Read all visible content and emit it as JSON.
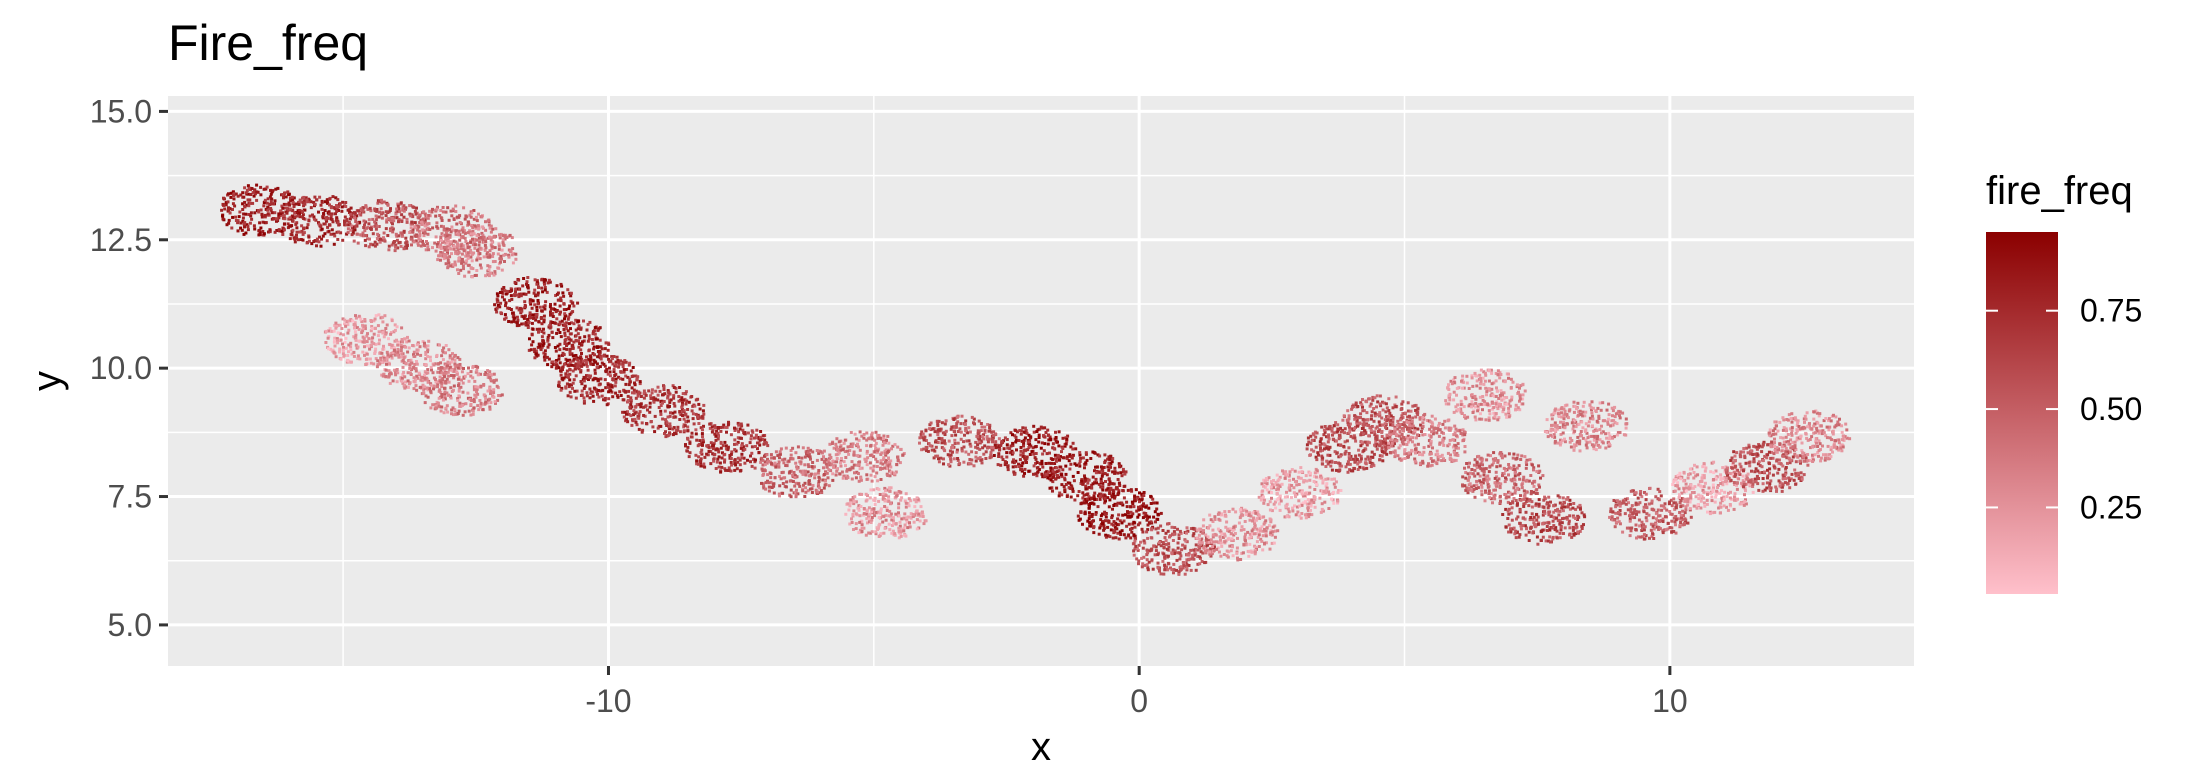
{
  "chart_data": {
    "type": "heatmap",
    "title": "Fire_freq",
    "xlabel": "x",
    "ylabel": "y",
    "xlim": [
      -18.3,
      14.6
    ],
    "ylim": [
      4.2,
      15.3
    ],
    "x_ticks": [
      -10,
      0,
      10
    ],
    "x_tick_labels": [
      "-10",
      "0",
      "10"
    ],
    "y_ticks": [
      5.0,
      7.5,
      10.0,
      12.5,
      15.0
    ],
    "y_tick_labels": [
      "5.0",
      "7.5",
      "10.0",
      "12.5",
      "15.0"
    ],
    "grid": true,
    "legend": {
      "title": "fire_freq",
      "placement": "right",
      "low_color": "#ffc0cb",
      "high_color": "#8b0000",
      "range": [
        0.03,
        0.95
      ],
      "breaks": [
        0.25,
        0.5,
        0.75
      ],
      "break_labels": [
        "0.25",
        "0.50",
        "0.75"
      ]
    },
    "colors": {
      "panel_background": "#ebebeb",
      "grid": "#ffffff"
    },
    "regions": [
      {
        "x": -16.6,
        "y": 13.1,
        "fire_freq": 0.8
      },
      {
        "x": -15.5,
        "y": 12.9,
        "fire_freq": 0.75
      },
      {
        "x": -14.2,
        "y": 12.8,
        "fire_freq": 0.55
      },
      {
        "x": -13.0,
        "y": 12.7,
        "fire_freq": 0.4
      },
      {
        "x": -12.5,
        "y": 12.3,
        "fire_freq": 0.35
      },
      {
        "x": -14.6,
        "y": 10.6,
        "fire_freq": 0.2
      },
      {
        "x": -13.6,
        "y": 10.1,
        "fire_freq": 0.3
      },
      {
        "x": -12.8,
        "y": 9.6,
        "fire_freq": 0.35
      },
      {
        "x": -11.4,
        "y": 11.3,
        "fire_freq": 0.8
      },
      {
        "x": -10.8,
        "y": 10.5,
        "fire_freq": 0.8
      },
      {
        "x": -10.2,
        "y": 9.8,
        "fire_freq": 0.75
      },
      {
        "x": -9.0,
        "y": 9.2,
        "fire_freq": 0.7
      },
      {
        "x": -7.8,
        "y": 8.5,
        "fire_freq": 0.7
      },
      {
        "x": -6.5,
        "y": 8.0,
        "fire_freq": 0.45
      },
      {
        "x": -5.2,
        "y": 8.3,
        "fire_freq": 0.35
      },
      {
        "x": -4.8,
        "y": 7.2,
        "fire_freq": 0.25
      },
      {
        "x": -3.4,
        "y": 8.6,
        "fire_freq": 0.55
      },
      {
        "x": -2.0,
        "y": 8.4,
        "fire_freq": 0.8
      },
      {
        "x": -1.0,
        "y": 7.9,
        "fire_freq": 0.8
      },
      {
        "x": -0.4,
        "y": 7.2,
        "fire_freq": 0.85
      },
      {
        "x": 0.6,
        "y": 6.5,
        "fire_freq": 0.55
      },
      {
        "x": 1.8,
        "y": 6.8,
        "fire_freq": 0.25
      },
      {
        "x": 3.0,
        "y": 7.6,
        "fire_freq": 0.2
      },
      {
        "x": 3.9,
        "y": 8.5,
        "fire_freq": 0.6
      },
      {
        "x": 4.6,
        "y": 9.0,
        "fire_freq": 0.55
      },
      {
        "x": 5.4,
        "y": 8.6,
        "fire_freq": 0.35
      },
      {
        "x": 6.5,
        "y": 9.5,
        "fire_freq": 0.25
      },
      {
        "x": 6.8,
        "y": 7.9,
        "fire_freq": 0.45
      },
      {
        "x": 7.6,
        "y": 7.1,
        "fire_freq": 0.6
      },
      {
        "x": 8.4,
        "y": 8.9,
        "fire_freq": 0.3
      },
      {
        "x": 9.6,
        "y": 7.2,
        "fire_freq": 0.5
      },
      {
        "x": 10.8,
        "y": 7.7,
        "fire_freq": 0.2
      },
      {
        "x": 11.8,
        "y": 8.1,
        "fire_freq": 0.55
      },
      {
        "x": 12.6,
        "y": 8.7,
        "fire_freq": 0.3
      }
    ]
  }
}
